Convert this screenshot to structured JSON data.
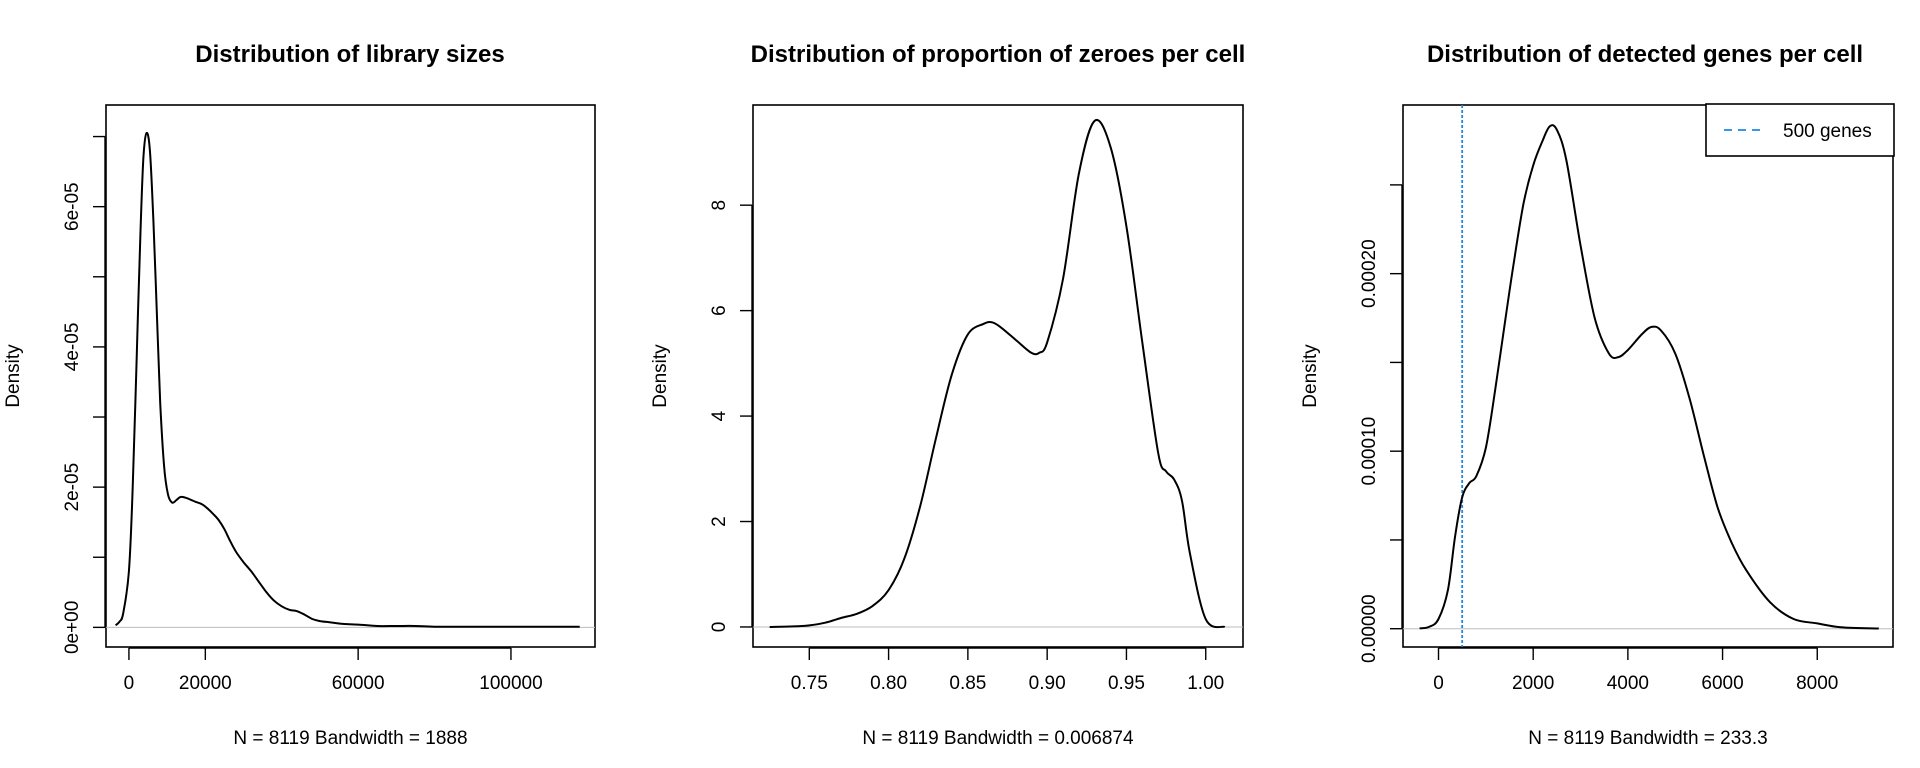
{
  "chart_data": [
    {
      "type": "line",
      "title": "Distribution of library sizes",
      "xlabel": "N = 8119   Bandwidth = 1888",
      "ylabel": "Density",
      "xlim": [
        -6000,
        122000
      ],
      "ylim": [
        -2.8e-06,
        7.45e-05
      ],
      "x_ticks": [
        0,
        20000,
        60000,
        100000
      ],
      "x_tick_labels": [
        "0",
        "20000",
        "60000",
        "100000"
      ],
      "y_ticks": [
        0,
        1e-05,
        2e-05,
        3e-05,
        4e-05,
        5e-05,
        6e-05,
        7e-05
      ],
      "y_tick_labels": [
        "0e+00",
        "",
        "2e-05",
        "",
        "4e-05",
        "",
        "6e-05",
        ""
      ],
      "baseline": true,
      "series": [
        {
          "name": "density",
          "color": "#000000",
          "x": [
            -3500,
            -2500,
            -1500,
            0,
            1000,
            2000,
            3000,
            3800,
            4600,
            5500,
            6400,
            7300,
            8200,
            9200,
            10200,
            11300,
            12500,
            13500,
            14800,
            16200,
            17500,
            19000,
            20500,
            22000,
            23500,
            25000,
            26500,
            28000,
            30000,
            32000,
            34000,
            36000,
            38000,
            40000,
            42000,
            44000,
            46000,
            48000,
            50000,
            53000,
            56000,
            60000,
            65000,
            70000,
            75000,
            80000,
            90000,
            100000,
            110000,
            118000
          ],
          "y": [
            3e-07,
            8e-07,
            2e-06,
            8e-06,
            2e-05,
            3.8e-05,
            5.6e-05,
            6.7e-05,
            7.05e-05,
            6.8e-05,
            5.8e-05,
            4.5e-05,
            3.2e-05,
            2.3e-05,
            1.9e-05,
            1.78e-05,
            1.82e-05,
            1.86e-05,
            1.85e-05,
            1.82e-05,
            1.79e-05,
            1.76e-05,
            1.7e-05,
            1.62e-05,
            1.53e-05,
            1.4e-05,
            1.23e-05,
            1.08e-05,
            9.3e-06,
            8e-06,
            6.5e-06,
            5e-06,
            3.8e-06,
            3e-06,
            2.5e-06,
            2.3e-06,
            1.8e-06,
            1.2e-06,
            9e-07,
            7e-07,
            5e-07,
            4e-07,
            2e-07,
            2e-07,
            2e-07,
            1e-07,
            1e-07,
            1e-07,
            1e-07,
            1e-07
          ]
        }
      ]
    },
    {
      "type": "line",
      "title": "Distribution of proportion of zeroes per cell",
      "xlabel": "N = 8119   Bandwidth = 0.006874",
      "ylabel": "Density",
      "xlim": [
        0.7145,
        1.0235
      ],
      "ylim": [
        -0.38,
        9.9
      ],
      "x_ticks": [
        0.75,
        0.8,
        0.85,
        0.9,
        0.95,
        1.0
      ],
      "x_tick_labels": [
        "0.75",
        "0.80",
        "0.85",
        "0.90",
        "0.95",
        "1.00"
      ],
      "y_ticks": [
        0,
        2,
        4,
        6,
        8
      ],
      "y_tick_labels": [
        "0",
        "2",
        "4",
        "6",
        "8"
      ],
      "baseline": true,
      "series": [
        {
          "name": "density",
          "color": "#000000",
          "x": [
            0.725,
            0.74,
            0.75,
            0.76,
            0.77,
            0.78,
            0.79,
            0.8,
            0.81,
            0.82,
            0.83,
            0.84,
            0.85,
            0.86,
            0.865,
            0.87,
            0.88,
            0.89,
            0.895,
            0.9,
            0.91,
            0.92,
            0.93,
            0.94,
            0.95,
            0.96,
            0.97,
            0.975,
            0.98,
            0.985,
            0.99,
            1.0,
            1.012
          ],
          "y": [
            0.0,
            0.01,
            0.03,
            0.08,
            0.17,
            0.25,
            0.4,
            0.7,
            1.3,
            2.3,
            3.6,
            4.8,
            5.55,
            5.75,
            5.78,
            5.7,
            5.45,
            5.2,
            5.2,
            5.4,
            6.6,
            8.6,
            9.6,
            9.1,
            7.6,
            5.4,
            3.3,
            2.95,
            2.8,
            2.4,
            1.4,
            0.15,
            0.0
          ]
        }
      ]
    },
    {
      "type": "line",
      "title": "Distribution of detected genes per cell",
      "xlabel": "N = 8119   Bandwidth = 233.3",
      "ylabel": "Density",
      "xlim": [
        -750,
        9600
      ],
      "ylim": [
        -1.03e-05,
        0.000295
      ],
      "x_ticks": [
        0,
        2000,
        4000,
        6000,
        8000
      ],
      "x_tick_labels": [
        "0",
        "2000",
        "4000",
        "6000",
        "8000"
      ],
      "y_ticks": [
        0,
        5e-05,
        0.0001,
        0.00015,
        0.0002,
        0.00025
      ],
      "y_tick_labels": [
        "0.00000",
        "",
        "0.00010",
        "",
        "0.00020",
        ""
      ],
      "baseline": true,
      "vline": {
        "x": 500,
        "color": "#1e88e5",
        "label": "500 genes"
      },
      "legend": {
        "position": "top-right",
        "items": [
          {
            "label": "500 genes",
            "color": "#1e88e5"
          }
        ]
      },
      "series": [
        {
          "name": "density",
          "color": "#000000",
          "x": [
            -400,
            -200,
            0,
            200,
            350,
            500,
            650,
            800,
            1000,
            1200,
            1400,
            1600,
            1800,
            2000,
            2200,
            2350,
            2500,
            2700,
            3000,
            3300,
            3600,
            3800,
            4000,
            4300,
            4500,
            4700,
            5000,
            5300,
            5600,
            5900,
            6200,
            6500,
            7000,
            7500,
            8000,
            8500,
            9300
          ],
          "y": [
            2e-07,
            1e-06,
            5.5e-06,
            2.2e-05,
            5.2e-05,
            7.4e-05,
            8.2e-05,
            8.6e-05,
            0.000102,
            0.000135,
            0.000172,
            0.000208,
            0.00024,
            0.000261,
            0.000275,
            0.000283,
            0.000281,
            0.000264,
            0.000216,
            0.000175,
            0.000155,
            0.000153,
            0.000157,
            0.000166,
            0.00017,
            0.000168,
            0.000155,
            0.00013,
            9.8e-05,
            6.8e-05,
            4.8e-05,
            3.3e-05,
            1.5e-05,
            5.5e-06,
            3e-06,
            8e-07,
            1e-07
          ]
        }
      ]
    }
  ]
}
